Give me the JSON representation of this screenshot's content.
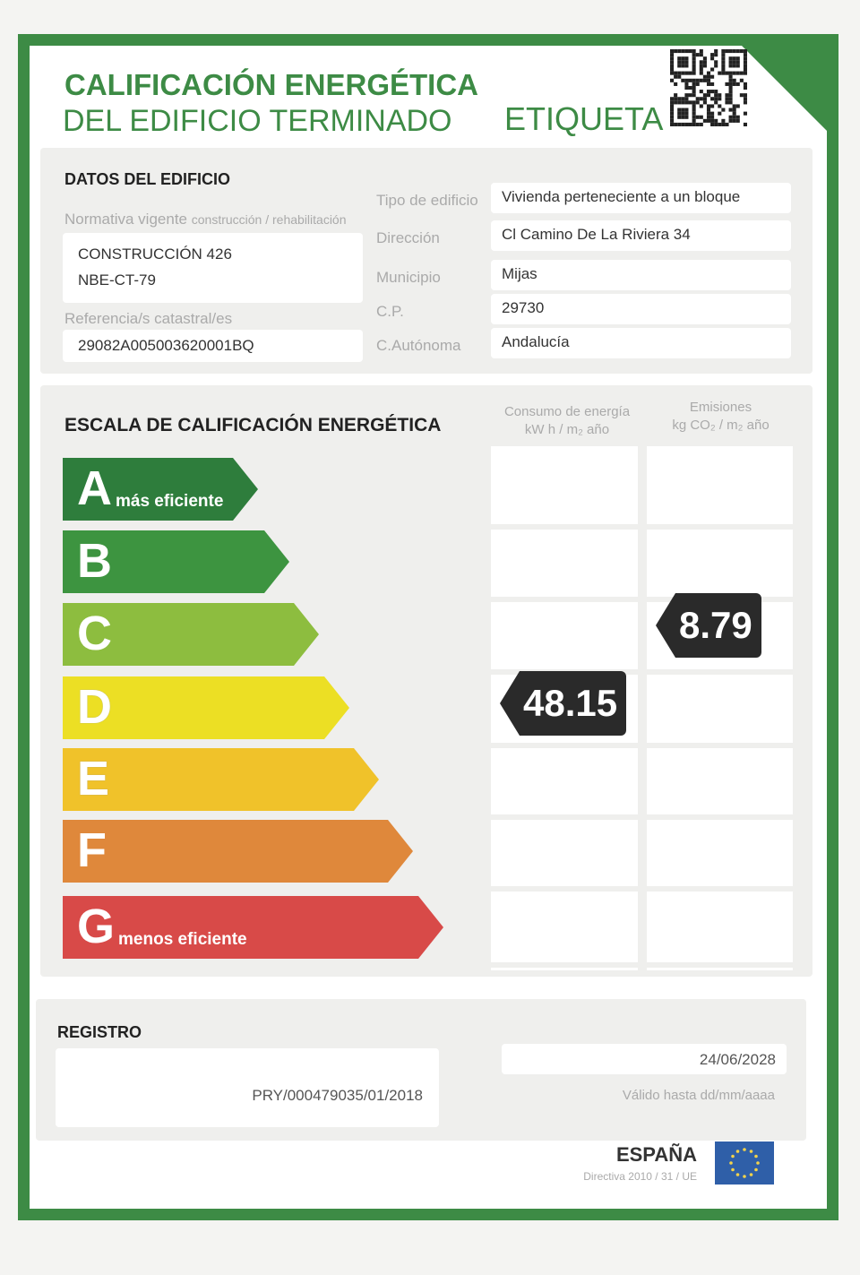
{
  "header": {
    "title_line1": "CALIFICACIÓN ENERGÉTICA",
    "title_line2": "DEL EDIFICIO TERMINADO",
    "label": "ETIQUETA",
    "qr_icon": "qr-code-icon"
  },
  "building": {
    "heading": "DATOS DEL EDIFICIO",
    "normativa_label": "Normativa vigente",
    "normativa_sublabel": "construcción / rehabilitación",
    "normativa_values": [
      "CONSTRUCCIÓN 426",
      "NBE-CT-79"
    ],
    "catastral_label": "Referencia/s catastral/es",
    "catastral_value": "29082A005003620001BQ",
    "fields": [
      {
        "label": "Tipo de edificio",
        "value": "Vivienda perteneciente a un bloque"
      },
      {
        "label": "Dirección",
        "value": "Cl Camino De La Riviera 34"
      },
      {
        "label": "Municipio",
        "value": "Mijas"
      },
      {
        "label": "C.P.",
        "value": "29730"
      },
      {
        "label": "C.Autónoma",
        "value": "Andalucía"
      }
    ]
  },
  "scale": {
    "heading": "ESCALA DE CALIFICACIÓN ENERGÉTICA",
    "col_consumo": {
      "line1": "Consumo de energía",
      "line2": "kW h / m₂ año"
    },
    "col_emisiones": {
      "line1": "Emisiones",
      "line2": "kg CO₂ / m₂ año"
    },
    "ratings": [
      {
        "letter": "A",
        "sub": "más eficiente",
        "color": "#2e7d3c"
      },
      {
        "letter": "B",
        "sub": "",
        "color": "#3d9440"
      },
      {
        "letter": "C",
        "sub": "",
        "color": "#8dbd3f"
      },
      {
        "letter": "D",
        "sub": "",
        "color": "#ecdf24"
      },
      {
        "letter": "E",
        "sub": "",
        "color": "#f0c22a"
      },
      {
        "letter": "F",
        "sub": "",
        "color": "#df883b"
      },
      {
        "letter": "G",
        "sub": "menos eficiente",
        "color": "#d84a48"
      }
    ],
    "consumo": {
      "value": "48.15",
      "rating": "D"
    },
    "emisiones": {
      "value": "8.79",
      "rating": "C"
    }
  },
  "registro": {
    "heading": "REGISTRO",
    "number": "PRY/000479035/01/2018",
    "valid_date": "24/06/2028",
    "valid_label": "Válido hasta dd/mm/aaaa"
  },
  "footer": {
    "country": "ESPAÑA",
    "directive": "Directiva 2010 / 31 / UE",
    "flag_icon": "eu-flag-icon"
  }
}
